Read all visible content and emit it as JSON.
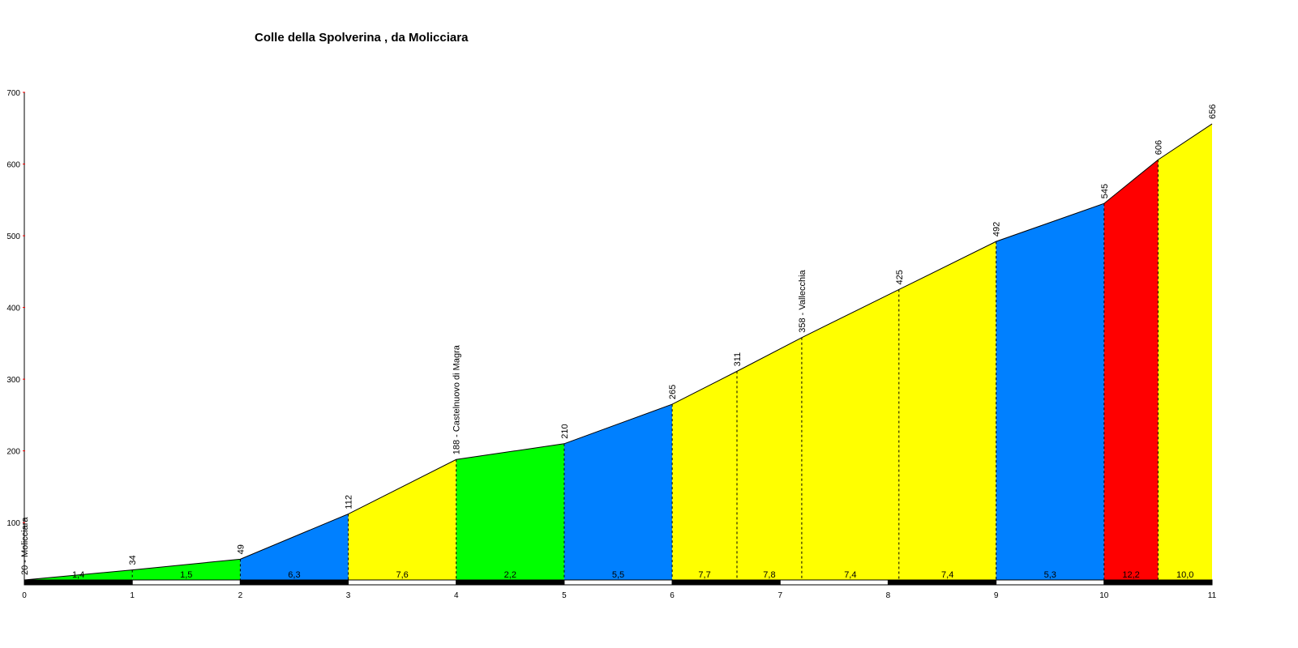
{
  "chart_data": {
    "type": "area",
    "title": "Colle della Spolverina , da Molicciara",
    "xlabel": "",
    "ylabel": "",
    "xlim": [
      0,
      11
    ],
    "ylim": [
      20,
      700
    ],
    "x_ticks": [
      "0",
      "1",
      "2",
      "3",
      "4",
      "5",
      "6",
      "7",
      "8",
      "9",
      "10",
      "11"
    ],
    "y_ticks": [
      "100",
      "200",
      "300",
      "400",
      "500",
      "600",
      "700"
    ],
    "points": [
      {
        "x": 0,
        "y": 20,
        "label": "20 - Molicciara"
      },
      {
        "x": 1,
        "y": 34,
        "label": "34"
      },
      {
        "x": 2,
        "y": 49,
        "label": "49"
      },
      {
        "x": 3,
        "y": 112,
        "label": "112"
      },
      {
        "x": 4,
        "y": 188,
        "label": "188 - Castelnuovo di Magra"
      },
      {
        "x": 5,
        "y": 210,
        "label": "210"
      },
      {
        "x": 6,
        "y": 265,
        "label": "265"
      },
      {
        "x": 6.6,
        "y": 311,
        "label": "311"
      },
      {
        "x": 7.2,
        "y": 358,
        "label": "358 - Vallecchia"
      },
      {
        "x": 8.1,
        "y": 425,
        "label": "425"
      },
      {
        "x": 9,
        "y": 492,
        "label": "492"
      },
      {
        "x": 10,
        "y": 545,
        "label": "545"
      },
      {
        "x": 10.5,
        "y": 606,
        "label": "606"
      },
      {
        "x": 11,
        "y": 656,
        "label": "656"
      }
    ],
    "segments": [
      {
        "gradient": "1,4",
        "color": "#00ff00"
      },
      {
        "gradient": "1,5",
        "color": "#00ff00"
      },
      {
        "gradient": "6,3",
        "color": "#0080ff"
      },
      {
        "gradient": "7,6",
        "color": "#ffff00"
      },
      {
        "gradient": "2,2",
        "color": "#00ff00"
      },
      {
        "gradient": "5,5",
        "color": "#0080ff"
      },
      {
        "gradient": "7,7",
        "color": "#ffff00"
      },
      {
        "gradient": "7,8",
        "color": "#ffff00"
      },
      {
        "gradient": "7,4",
        "color": "#ffff00"
      },
      {
        "gradient": "7,4",
        "color": "#ffff00"
      },
      {
        "gradient": "5,3",
        "color": "#0080ff"
      },
      {
        "gradient": "12,2",
        "color": "#ff0000"
      },
      {
        "gradient": "10,0",
        "color": "#ffff00"
      }
    ],
    "grid": false
  }
}
